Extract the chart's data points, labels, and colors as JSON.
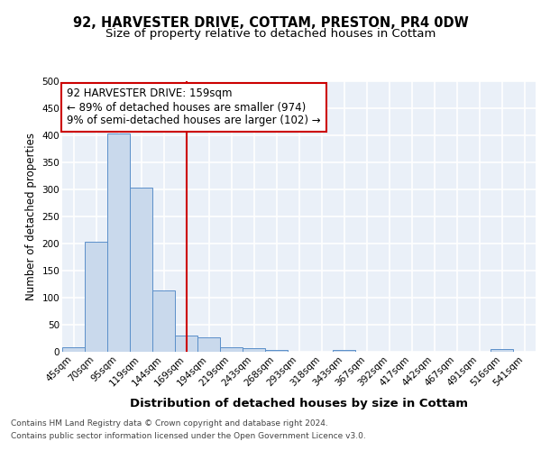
{
  "title_line1": "92, HARVESTER DRIVE, COTTAM, PRESTON, PR4 0DW",
  "title_line2": "Size of property relative to detached houses in Cottam",
  "xlabel": "Distribution of detached houses by size in Cottam",
  "ylabel": "Number of detached properties",
  "bin_labels": [
    "45sqm",
    "70sqm",
    "95sqm",
    "119sqm",
    "144sqm",
    "169sqm",
    "194sqm",
    "219sqm",
    "243sqm",
    "268sqm",
    "293sqm",
    "318sqm",
    "343sqm",
    "367sqm",
    "392sqm",
    "417sqm",
    "442sqm",
    "467sqm",
    "491sqm",
    "516sqm",
    "541sqm"
  ],
  "bin_values": [
    9,
    204,
    404,
    303,
    114,
    30,
    27,
    8,
    6,
    4,
    0,
    0,
    4,
    0,
    0,
    0,
    0,
    0,
    0,
    5,
    0
  ],
  "bar_color": "#c9d9ec",
  "bar_edge_color": "#5b8fc9",
  "red_line_x": 5.0,
  "annotation_text": "92 HARVESTER DRIVE: 159sqm\n← 89% of detached houses are smaller (974)\n9% of semi-detached houses are larger (102) →",
  "annotation_box_color": "#ffffff",
  "annotation_box_edge": "#cc0000",
  "footnote1": "Contains HM Land Registry data © Crown copyright and database right 2024.",
  "footnote2": "Contains public sector information licensed under the Open Government Licence v3.0.",
  "ylim": [
    0,
    500
  ],
  "yticks": [
    0,
    50,
    100,
    150,
    200,
    250,
    300,
    350,
    400,
    450,
    500
  ],
  "bg_color": "#eaf0f8",
  "grid_color": "#ffffff",
  "title1_fontsize": 10.5,
  "title2_fontsize": 9.5,
  "xlabel_fontsize": 9.5,
  "ylabel_fontsize": 8.5,
  "tick_fontsize": 7.5,
  "annot_fontsize": 8.5
}
